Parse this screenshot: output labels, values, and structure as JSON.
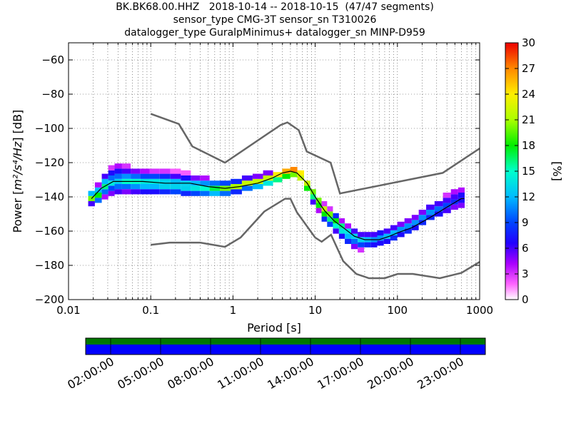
{
  "title_lines": [
    "BK.BK68.00.HHZ   2018-10-14 -- 2018-10-15  (47/47 segments)",
    "sensor_type CMG-3T sensor_sn T310026",
    "datalogger_type GuralpMinimus+ datalogger_sn MINP-D959"
  ],
  "chart_data": {
    "type": "heatmap",
    "xlabel": "Period [s]",
    "ylabel": "Power [m²/s⁴/Hz] [dB]",
    "ylabel_parts": {
      "prefix": "Power [",
      "unit": "m²/s⁴/Hz",
      "suffix": "] [dB]"
    },
    "x_scale": "log",
    "xlim": [
      0.01,
      1000
    ],
    "ylim": [
      -200,
      -50
    ],
    "x_ticks": [
      0.01,
      0.1,
      1,
      10,
      100,
      1000
    ],
    "x_tick_labels": [
      "0.01",
      "0.1",
      "1",
      "10",
      "100",
      "1000"
    ],
    "y_ticks": [
      -200,
      -180,
      -160,
      -140,
      -120,
      -100,
      -80,
      -60
    ],
    "y_tick_labels": [
      "−200",
      "−180",
      "−160",
      "−140",
      "−120",
      "−100",
      "−80",
      "−60"
    ],
    "grid": true,
    "colorbar": {
      "label": "[%]",
      "range": [
        0,
        30
      ],
      "ticks": [
        0,
        3,
        6,
        9,
        12,
        15,
        18,
        21,
        24,
        27,
        30
      ],
      "tick_labels": [
        "0",
        "3",
        "6",
        "9",
        "12",
        "15",
        "18",
        "21",
        "24",
        "27",
        "30"
      ]
    },
    "noise_models": [
      {
        "id": "NHNM",
        "color": "#666666",
        "points": [
          [
            0.1,
            -91.5
          ],
          [
            0.22,
            -97.4
          ],
          [
            0.32,
            -110.5
          ],
          [
            0.8,
            -120
          ],
          [
            3.8,
            -98
          ],
          [
            4.6,
            -96.5
          ],
          [
            6.3,
            -101
          ],
          [
            7.9,
            -113.5
          ],
          [
            15.4,
            -120
          ],
          [
            20,
            -138
          ],
          [
            354.8,
            -126
          ],
          [
            10000,
            -80
          ]
        ]
      },
      {
        "id": "NLNM",
        "color": "#666666",
        "points": [
          [
            0.1,
            -168
          ],
          [
            0.17,
            -166.7
          ],
          [
            0.4,
            -166.7
          ],
          [
            0.8,
            -169.2
          ],
          [
            1.24,
            -163.7
          ],
          [
            2.4,
            -148.6
          ],
          [
            4.3,
            -141.1
          ],
          [
            5,
            -141.1
          ],
          [
            6,
            -149
          ],
          [
            10,
            -163.8
          ],
          [
            12,
            -166.2
          ],
          [
            15.6,
            -162.1
          ],
          [
            21.9,
            -177.5
          ],
          [
            31.6,
            -185
          ],
          [
            45,
            -187.5
          ],
          [
            70,
            -187.5
          ],
          [
            101,
            -185
          ],
          [
            154,
            -185
          ],
          [
            328,
            -187.5
          ],
          [
            600,
            -184.4
          ],
          [
            1000,
            -178
          ]
        ]
      }
    ],
    "median": [
      [
        0.019,
        -141
      ],
      [
        0.025,
        -135
      ],
      [
        0.035,
        -131
      ],
      [
        0.05,
        -131
      ],
      [
        0.08,
        -131
      ],
      [
        0.15,
        -132
      ],
      [
        0.3,
        -132
      ],
      [
        0.5,
        -134
      ],
      [
        0.8,
        -135
      ],
      [
        1.2,
        -134
      ],
      [
        2,
        -132
      ],
      [
        3,
        -129
      ],
      [
        4,
        -126
      ],
      [
        5,
        -125
      ],
      [
        6,
        -126
      ],
      [
        8,
        -132
      ],
      [
        10,
        -140
      ],
      [
        13,
        -148
      ],
      [
        17,
        -154
      ],
      [
        22,
        -158
      ],
      [
        30,
        -163
      ],
      [
        40,
        -165
      ],
      [
        60,
        -165
      ],
      [
        80,
        -163
      ],
      [
        100,
        -161
      ],
      [
        150,
        -158
      ],
      [
        250,
        -152
      ],
      [
        400,
        -146
      ],
      [
        600,
        -141
      ],
      [
        650,
        -141
      ]
    ],
    "density": [
      {
        "p": 0.019,
        "bins": [
          [
            -144,
            6
          ],
          [
            -141,
            20
          ],
          [
            -138,
            12
          ]
        ]
      },
      {
        "p": 0.023,
        "bins": [
          [
            -142,
            10
          ],
          [
            -139,
            18
          ],
          [
            -136,
            12
          ],
          [
            -133,
            4
          ]
        ]
      },
      {
        "p": 0.028,
        "bins": [
          [
            -140,
            4
          ],
          [
            -137,
            10
          ],
          [
            -134,
            16
          ],
          [
            -131,
            12
          ],
          [
            -128,
            6
          ]
        ]
      },
      {
        "p": 0.033,
        "bins": [
          [
            -138,
            5
          ],
          [
            -135,
            9
          ],
          [
            -132,
            14
          ],
          [
            -129,
            10
          ],
          [
            -126,
            7
          ],
          [
            -123,
            3
          ]
        ]
      },
      {
        "p": 0.04,
        "bins": [
          [
            -137,
            6
          ],
          [
            -134,
            10
          ],
          [
            -131,
            13
          ],
          [
            -128,
            10
          ],
          [
            -125,
            7
          ],
          [
            -122,
            4
          ]
        ]
      },
      {
        "p": 0.05,
        "bins": [
          [
            -137,
            5
          ],
          [
            -134,
            10
          ],
          [
            -131,
            15
          ],
          [
            -128,
            11
          ],
          [
            -125,
            6
          ],
          [
            -122,
            3
          ]
        ]
      },
      {
        "p": 0.065,
        "bins": [
          [
            -137,
            6
          ],
          [
            -134,
            11
          ],
          [
            -131,
            15
          ],
          [
            -128,
            10
          ],
          [
            -125,
            5
          ]
        ]
      },
      {
        "p": 0.085,
        "bins": [
          [
            -137,
            7
          ],
          [
            -134,
            12
          ],
          [
            -131,
            14
          ],
          [
            -128,
            9
          ],
          [
            -125,
            4
          ]
        ]
      },
      {
        "p": 0.11,
        "bins": [
          [
            -137,
            7
          ],
          [
            -134,
            12
          ],
          [
            -131,
            14
          ],
          [
            -128,
            9
          ],
          [
            -125,
            3
          ]
        ]
      },
      {
        "p": 0.15,
        "bins": [
          [
            -137,
            8
          ],
          [
            -134,
            13
          ],
          [
            -131,
            13
          ],
          [
            -128,
            8
          ],
          [
            -125,
            3
          ]
        ]
      },
      {
        "p": 0.2,
        "bins": [
          [
            -137,
            9
          ],
          [
            -134,
            13
          ],
          [
            -131,
            12
          ],
          [
            -128,
            6
          ],
          [
            -125,
            2
          ]
        ]
      },
      {
        "p": 0.27,
        "bins": [
          [
            -138,
            8
          ],
          [
            -135,
            13
          ],
          [
            -132,
            13
          ],
          [
            -129,
            7
          ],
          [
            -126,
            2
          ]
        ]
      },
      {
        "p": 0.35,
        "bins": [
          [
            -138,
            9
          ],
          [
            -135,
            14
          ],
          [
            -132,
            12
          ],
          [
            -129,
            5
          ]
        ]
      },
      {
        "p": 0.45,
        "bins": [
          [
            -138,
            10
          ],
          [
            -135,
            15
          ],
          [
            -132,
            11
          ],
          [
            -129,
            4
          ]
        ]
      },
      {
        "p": 0.6,
        "bins": [
          [
            -138,
            12
          ],
          [
            -135,
            17
          ],
          [
            -132,
            10
          ]
        ]
      },
      {
        "p": 0.8,
        "bins": [
          [
            -138,
            10
          ],
          [
            -135,
            20
          ],
          [
            -132,
            9
          ]
        ]
      },
      {
        "p": 1.1,
        "bins": [
          [
            -137,
            8
          ],
          [
            -134,
            21
          ],
          [
            -131,
            8
          ]
        ]
      },
      {
        "p": 1.5,
        "bins": [
          [
            -135,
            10
          ],
          [
            -132,
            22
          ],
          [
            -129,
            6
          ]
        ]
      },
      {
        "p": 2,
        "bins": [
          [
            -134,
            12
          ],
          [
            -131,
            22
          ],
          [
            -128,
            5
          ]
        ]
      },
      {
        "p": 2.7,
        "bins": [
          [
            -132,
            14
          ],
          [
            -129,
            22
          ],
          [
            -126,
            5
          ]
        ]
      },
      {
        "p": 3.5,
        "bins": [
          [
            -130,
            16
          ],
          [
            -127,
            24
          ]
        ]
      },
      {
        "p": 4.5,
        "bins": [
          [
            -128,
            18
          ],
          [
            -125,
            26
          ]
        ]
      },
      {
        "p": 5.5,
        "bins": [
          [
            -127,
            20
          ],
          [
            -124,
            27
          ]
        ]
      },
      {
        "p": 6.7,
        "bins": [
          [
            -129,
            22
          ],
          [
            -126,
            24
          ]
        ]
      },
      {
        "p": 8,
        "bins": [
          [
            -135,
            18
          ],
          [
            -132,
            22
          ]
        ]
      },
      {
        "p": 9.5,
        "bins": [
          [
            -140,
            16
          ],
          [
            -137,
            20
          ],
          [
            -143,
            6
          ]
        ]
      },
      {
        "p": 11,
        "bins": [
          [
            -145,
            18
          ],
          [
            -142,
            20
          ],
          [
            -148,
            4
          ]
        ]
      },
      {
        "p": 13,
        "bins": [
          [
            -150,
            18
          ],
          [
            -147,
            22
          ],
          [
            -153,
            8
          ],
          [
            -144,
            3
          ]
        ]
      },
      {
        "p": 15,
        "bins": [
          [
            -153,
            16
          ],
          [
            -150,
            20
          ],
          [
            -156,
            9
          ],
          [
            -147,
            3
          ]
        ]
      },
      {
        "p": 18,
        "bins": [
          [
            -157,
            15
          ],
          [
            -154,
            18
          ],
          [
            -151,
            8
          ],
          [
            -160,
            6
          ]
        ]
      },
      {
        "p": 21,
        "bins": [
          [
            -160,
            14
          ],
          [
            -157,
            16
          ],
          [
            -163,
            7
          ],
          [
            -154,
            4
          ]
        ]
      },
      {
        "p": 25,
        "bins": [
          [
            -163,
            12
          ],
          [
            -160,
            14
          ],
          [
            -166,
            8
          ],
          [
            -157,
            4
          ]
        ]
      },
      {
        "p": 30,
        "bins": [
          [
            -166,
            10
          ],
          [
            -163,
            13
          ],
          [
            -160,
            6
          ],
          [
            -169,
            5
          ]
        ]
      },
      {
        "p": 36,
        "bins": [
          [
            -168,
            9
          ],
          [
            -165,
            13
          ],
          [
            -162,
            6
          ],
          [
            -171,
            3
          ]
        ]
      },
      {
        "p": 43,
        "bins": [
          [
            -168,
            8
          ],
          [
            -165,
            12
          ],
          [
            -162,
            6
          ]
        ]
      },
      {
        "p": 52,
        "bins": [
          [
            -168,
            7
          ],
          [
            -165,
            11
          ],
          [
            -162,
            6
          ]
        ]
      },
      {
        "p": 62,
        "bins": [
          [
            -167,
            7
          ],
          [
            -164,
            11
          ],
          [
            -161,
            7
          ]
        ]
      },
      {
        "p": 75,
        "bins": [
          [
            -166,
            7
          ],
          [
            -163,
            12
          ],
          [
            -160,
            6
          ]
        ]
      },
      {
        "p": 90,
        "bins": [
          [
            -164,
            8
          ],
          [
            -161,
            12
          ],
          [
            -158,
            6
          ]
        ]
      },
      {
        "p": 110,
        "bins": [
          [
            -162,
            7
          ],
          [
            -159,
            11
          ],
          [
            -156,
            5
          ]
        ]
      },
      {
        "p": 135,
        "bins": [
          [
            -160,
            8
          ],
          [
            -157,
            11
          ],
          [
            -154,
            5
          ]
        ]
      },
      {
        "p": 165,
        "bins": [
          [
            -158,
            7
          ],
          [
            -155,
            11
          ],
          [
            -152,
            5
          ]
        ]
      },
      {
        "p": 200,
        "bins": [
          [
            -155,
            8
          ],
          [
            -152,
            11
          ],
          [
            -149,
            5
          ]
        ]
      },
      {
        "p": 250,
        "bins": [
          [
            -152,
            8
          ],
          [
            -149,
            11
          ],
          [
            -146,
            6
          ]
        ]
      },
      {
        "p": 320,
        "bins": [
          [
            -150,
            7
          ],
          [
            -147,
            10
          ],
          [
            -144,
            6
          ]
        ]
      },
      {
        "p": 400,
        "bins": [
          [
            -148,
            6
          ],
          [
            -145,
            9
          ],
          [
            -142,
            6
          ],
          [
            -139,
            3
          ]
        ]
      },
      {
        "p": 500,
        "bins": [
          [
            -146,
            5
          ],
          [
            -143,
            8
          ],
          [
            -140,
            6
          ],
          [
            -137,
            4
          ]
        ]
      },
      {
        "p": 600,
        "bins": [
          [
            -145,
            5
          ],
          [
            -142,
            7
          ],
          [
            -139,
            7
          ],
          [
            -136,
            4
          ]
        ]
      }
    ]
  },
  "coverage_bar": {
    "colors": {
      "data": "#0000ff",
      "gap_top": "#007700"
    },
    "time_labels": [
      "02:00:00",
      "05:00:00",
      "08:00:00",
      "11:00:00",
      "14:00:00",
      "17:00:00",
      "20:00:00",
      "23:00:00"
    ],
    "time_hours": [
      2,
      5,
      8,
      11,
      14,
      17,
      20,
      23
    ]
  }
}
